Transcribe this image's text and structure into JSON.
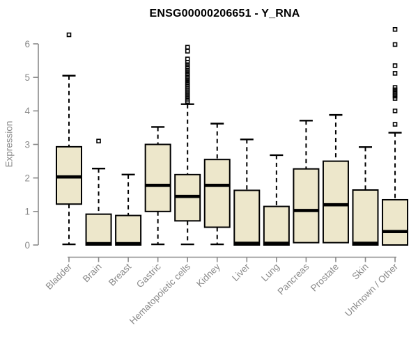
{
  "chart_data": {
    "type": "boxplot",
    "title": "ENSG00000206651 - Y_RNA",
    "xlabel": "",
    "ylabel": "Expression",
    "ylim": [
      0,
      6.6
    ],
    "yticks": [
      0,
      1,
      2,
      3,
      4,
      5,
      6
    ],
    "grid": false,
    "legend": "none",
    "colors": {
      "box_fill": "#EDE7CB",
      "box_border": "#000000",
      "median": "#000000",
      "whisker": "#000000",
      "axis": "#8a8a8a",
      "title": "#000000",
      "background": "#ffffff"
    },
    "categories": [
      "Bladder",
      "Brain",
      "Breast",
      "Gastric",
      "Hematopoietic cells",
      "Kidney",
      "Liver",
      "Lung",
      "Pancreas",
      "Prostate",
      "Skin",
      "Unknown / Other"
    ],
    "boxes": [
      {
        "category": "Bladder",
        "whisker_low": 0.02,
        "q1": 1.22,
        "median": 2.03,
        "q3": 2.93,
        "whisker_high": 5.05,
        "outliers": [
          6.27
        ]
      },
      {
        "category": "Brain",
        "whisker_low": 0.0,
        "q1": 0.0,
        "median": 0.04,
        "q3": 0.92,
        "whisker_high": 2.28,
        "outliers": [
          3.1
        ]
      },
      {
        "category": "Breast",
        "whisker_low": 0.0,
        "q1": 0.0,
        "median": 0.04,
        "q3": 0.88,
        "whisker_high": 2.1,
        "outliers": []
      },
      {
        "category": "Gastric",
        "whisker_low": 0.02,
        "q1": 1.0,
        "median": 1.78,
        "q3": 3.0,
        "whisker_high": 3.52,
        "outliers": []
      },
      {
        "category": "Hematopoietic cells",
        "whisker_low": 0.02,
        "q1": 0.72,
        "median": 1.45,
        "q3": 2.1,
        "whisker_high": 4.2,
        "outliers": [
          5.9,
          5.78,
          5.55,
          5.45,
          5.38,
          5.3,
          5.22,
          5.15,
          5.08,
          5.0,
          4.93,
          4.86,
          4.8,
          4.74,
          4.68,
          4.62,
          4.56,
          4.5,
          4.44,
          4.38,
          4.32,
          4.27
        ]
      },
      {
        "category": "Kidney",
        "whisker_low": 0.02,
        "q1": 0.53,
        "median": 1.78,
        "q3": 2.55,
        "whisker_high": 3.62,
        "outliers": []
      },
      {
        "category": "Liver",
        "whisker_low": 0.0,
        "q1": 0.0,
        "median": 0.05,
        "q3": 1.63,
        "whisker_high": 3.15,
        "outliers": []
      },
      {
        "category": "Lung",
        "whisker_low": 0.0,
        "q1": 0.0,
        "median": 0.05,
        "q3": 1.15,
        "whisker_high": 2.68,
        "outliers": []
      },
      {
        "category": "Pancreas",
        "whisker_low": 0.07,
        "q1": 0.07,
        "median": 1.03,
        "q3": 2.27,
        "whisker_high": 3.71,
        "outliers": []
      },
      {
        "category": "Prostate",
        "whisker_low": 0.07,
        "q1": 0.07,
        "median": 1.2,
        "q3": 2.5,
        "whisker_high": 3.88,
        "outliers": []
      },
      {
        "category": "Skin",
        "whisker_low": 0.0,
        "q1": 0.0,
        "median": 0.05,
        "q3": 1.64,
        "whisker_high": 2.92,
        "outliers": []
      },
      {
        "category": "Unknown / Other",
        "whisker_low": 0.0,
        "q1": 0.0,
        "median": 0.4,
        "q3": 1.35,
        "whisker_high": 3.35,
        "outliers": [
          6.43,
          5.98,
          5.35,
          5.12,
          4.7,
          4.63,
          4.56,
          4.5,
          4.44,
          4.37,
          4.0,
          3.6
        ]
      }
    ]
  }
}
